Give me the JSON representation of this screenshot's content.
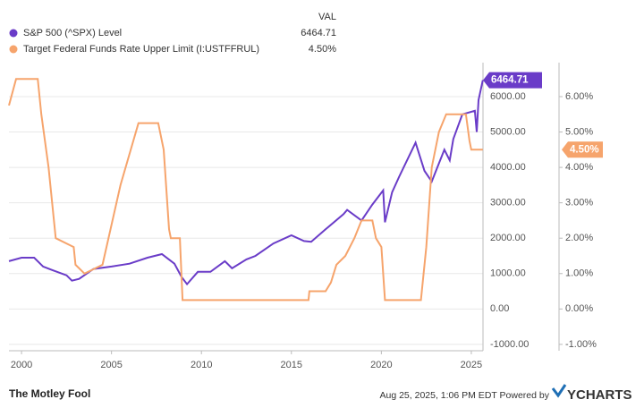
{
  "chart_data": {
    "type": "line",
    "legend_header": "VAL",
    "series": [
      {
        "name": "S&P 500 (^SPX) Level",
        "color": "#6a3cc8",
        "axis": "y",
        "last_label": "6464.71",
        "x": [
          1999.3,
          2000.0,
          2000.7,
          2001.2,
          2001.7,
          2002.5,
          2002.8,
          2003.2,
          2004.0,
          2005.0,
          2006.0,
          2007.0,
          2007.8,
          2008.5,
          2008.9,
          2009.2,
          2009.8,
          2010.5,
          2011.3,
          2011.7,
          2012.5,
          2013.0,
          2014.0,
          2015.0,
          2015.7,
          2016.1,
          2016.9,
          2017.9,
          2018.1,
          2018.9,
          2019.5,
          2020.1,
          2020.2,
          2020.6,
          2021.0,
          2021.9,
          2022.4,
          2022.8,
          2023.5,
          2023.8,
          2024.0,
          2024.5,
          2025.2,
          2025.3,
          2025.4,
          2025.64
        ],
        "values": [
          1350,
          1450,
          1450,
          1200,
          1100,
          950,
          800,
          850,
          1130,
          1200,
          1280,
          1450,
          1550,
          1280,
          900,
          700,
          1050,
          1050,
          1350,
          1150,
          1400,
          1500,
          1850,
          2080,
          1920,
          1900,
          2250,
          2680,
          2800,
          2500,
          2950,
          3350,
          2450,
          3300,
          3750,
          4700,
          3900,
          3600,
          4500,
          4200,
          4800,
          5500,
          5600,
          5000,
          5900,
          6464.71
        ]
      },
      {
        "name": "Target Federal Funds Rate Upper Limit (I:USTFFRUL)",
        "color": "#f6a46c",
        "axis": "y2",
        "last_label": "4.50%",
        "x": [
          1999.3,
          1999.7,
          2000.9,
          2001.1,
          2001.5,
          2001.9,
          2002.9,
          2003.0,
          2003.5,
          2004.5,
          2005.5,
          2006.5,
          2007.6,
          2007.9,
          2008.2,
          2008.3,
          2008.8,
          2008.95,
          2015.95,
          2016.0,
          2016.9,
          2017.2,
          2017.5,
          2018.0,
          2018.5,
          2018.9,
          2019.5,
          2019.7,
          2020.0,
          2020.2,
          2022.2,
          2022.5,
          2022.8,
          2023.2,
          2023.6,
          2024.7,
          2024.9,
          2025.0,
          2025.64
        ],
        "values": [
          5.75,
          6.5,
          6.5,
          5.5,
          4.0,
          2.0,
          1.75,
          1.25,
          1.0,
          1.25,
          3.5,
          5.25,
          5.25,
          4.5,
          2.25,
          2.0,
          2.0,
          0.25,
          0.25,
          0.5,
          0.5,
          0.75,
          1.25,
          1.5,
          2.0,
          2.5,
          2.5,
          2.0,
          1.75,
          0.25,
          0.25,
          1.75,
          4.0,
          5.0,
          5.5,
          5.5,
          4.75,
          4.5,
          4.5
        ]
      }
    ],
    "xlim": [
      1999.3,
      2025.65
    ],
    "xticks": [
      2000,
      2005,
      2010,
      2015,
      2020,
      2025
    ],
    "ylim": [
      -1180,
      6960
    ],
    "yticks": [
      {
        "value": -1000,
        "label": "-1000.00"
      },
      {
        "value": 0,
        "label": "0.00"
      },
      {
        "value": 1000,
        "label": "1000.00"
      },
      {
        "value": 2000,
        "label": "2000.00"
      },
      {
        "value": 3000,
        "label": "3000.00"
      },
      {
        "value": 4000,
        "label": "4000.00"
      },
      {
        "value": 5000,
        "label": "5000.00"
      },
      {
        "value": 6000,
        "label": "6000.00"
      }
    ],
    "y2lim": [
      -1.18,
      6.96
    ],
    "y2ticks": [
      {
        "value": -1,
        "label": "-1.00%"
      },
      {
        "value": 0,
        "label": "0.00%"
      },
      {
        "value": 1,
        "label": "1.00%"
      },
      {
        "value": 2,
        "label": "2.00%"
      },
      {
        "value": 3,
        "label": "3.00%"
      },
      {
        "value": 4,
        "label": "4.00%"
      },
      {
        "value": 5,
        "label": "5.00%"
      },
      {
        "value": 6,
        "label": "6.00%"
      }
    ],
    "grid": true,
    "footer": {
      "brand": "The Motley Fool",
      "timestamp": "Aug 25, 2025, 1:06 PM EDT Powered by",
      "source": "YCHARTS"
    }
  }
}
